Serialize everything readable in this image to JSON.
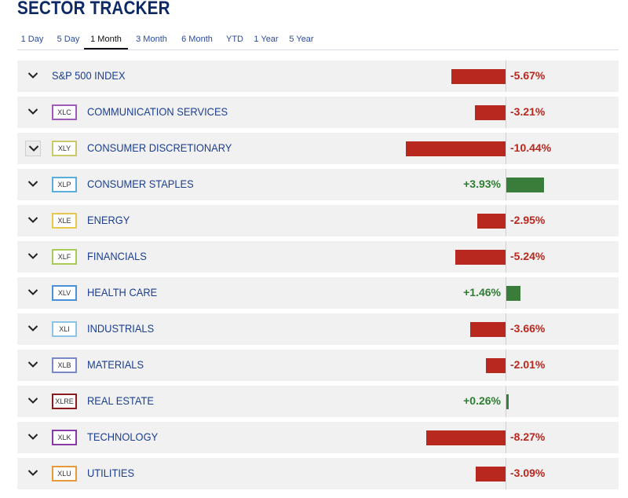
{
  "title": "SECTOR TRACKER",
  "tabs": [
    "1 Day",
    "5 Day",
    "1 Month",
    "3 Month",
    "6 Month",
    "YTD",
    "1 Year",
    "5 Year"
  ],
  "active_tab": "1 Month",
  "colors": {
    "negative": "#b8281f",
    "positive": "#3a7d3a"
  },
  "sectors": [
    {
      "ticker": "",
      "name": "S&P 500 INDEX",
      "change": "-5.67%",
      "value": -5.67,
      "badge_color": ""
    },
    {
      "ticker": "XLC",
      "name": "COMMUNICATION SERVICES",
      "change": "-3.21%",
      "value": -3.21,
      "badge_color": "#a05ab8"
    },
    {
      "ticker": "XLY",
      "name": "CONSUMER DISCRETIONARY",
      "change": "-10.44%",
      "value": -10.44,
      "badge_color": "#c9c96a"
    },
    {
      "ticker": "XLP",
      "name": "CONSUMER STAPLES",
      "change": "+3.93%",
      "value": 3.93,
      "badge_color": "#5aaedb"
    },
    {
      "ticker": "XLE",
      "name": "ENERGY",
      "change": "-2.95%",
      "value": -2.95,
      "badge_color": "#e8c84a"
    },
    {
      "ticker": "XLF",
      "name": "FINANCIALS",
      "change": "-5.24%",
      "value": -5.24,
      "badge_color": "#a8cc5a"
    },
    {
      "ticker": "XLV",
      "name": "HEALTH CARE",
      "change": "+1.46%",
      "value": 1.46,
      "badge_color": "#4a8fd8"
    },
    {
      "ticker": "XLI",
      "name": "INDUSTRIALS",
      "change": "-3.66%",
      "value": -3.66,
      "badge_color": "#8cc4e8"
    },
    {
      "ticker": "XLB",
      "name": "MATERIALS",
      "change": "-2.01%",
      "value": -2.01,
      "badge_color": "#7a88c8"
    },
    {
      "ticker": "XLRE",
      "name": "REAL ESTATE",
      "change": "+0.26%",
      "value": 0.26,
      "badge_color": "#8b1a1a"
    },
    {
      "ticker": "XLK",
      "name": "TECHNOLOGY",
      "change": "-8.27%",
      "value": -8.27,
      "badge_color": "#8a3aa8"
    },
    {
      "ticker": "XLU",
      "name": "UTILITIES",
      "change": "-3.09%",
      "value": -3.09,
      "badge_color": "#e89a3a"
    }
  ]
}
